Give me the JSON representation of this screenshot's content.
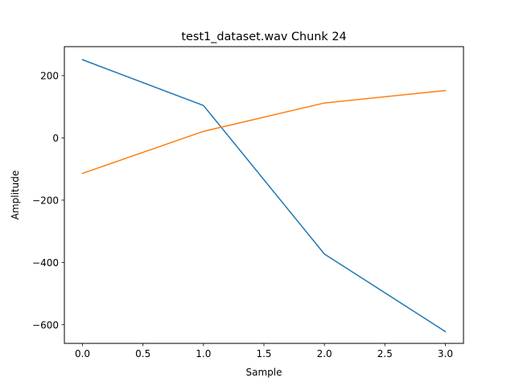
{
  "chart_data": {
    "type": "line",
    "title": "test1_dataset.wav Chunk 24",
    "xlabel": "Sample",
    "ylabel": "Amplitude",
    "xlim": [
      -0.15,
      3.15
    ],
    "ylim": [
      -660,
      293
    ],
    "x_ticks": [
      0.0,
      0.5,
      1.0,
      1.5,
      2.0,
      2.5,
      3.0
    ],
    "x_tick_labels": [
      "0.0",
      "0.5",
      "1.0",
      "1.5",
      "2.0",
      "2.5",
      "3.0"
    ],
    "y_ticks": [
      -600,
      -400,
      -200,
      0,
      200
    ],
    "y_tick_labels": [
      "−600",
      "−400",
      "−200",
      "0",
      "200"
    ],
    "grid": false,
    "legend": "none",
    "x": [
      0,
      1,
      2,
      3
    ],
    "series": [
      {
        "color": "#1f77b4",
        "values": [
          251,
          104,
          -373,
          -622
        ]
      },
      {
        "color": "#ff7f0e",
        "values": [
          -114,
          21,
          112,
          152
        ]
      }
    ]
  }
}
